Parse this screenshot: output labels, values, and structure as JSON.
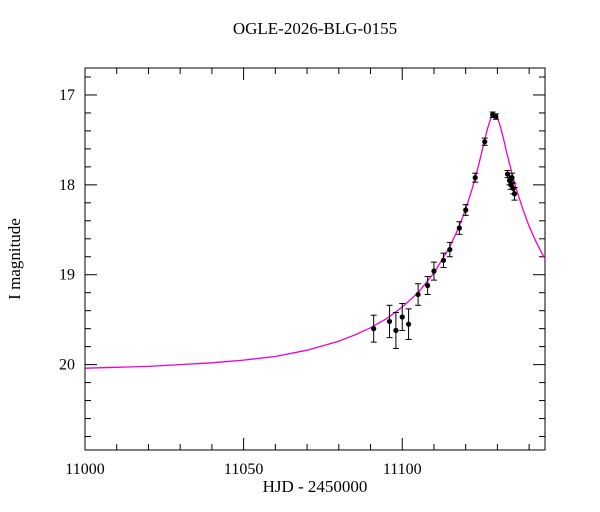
{
  "chart_data": {
    "type": "line",
    "title": "OGLE-2026-BLG-0155",
    "xlabel": "HJD - 2450000",
    "ylabel": "I magnitude",
    "xlim": [
      11000,
      11145
    ],
    "ylim": [
      20.95,
      16.7
    ],
    "y_axis_inverted": true,
    "grid": false,
    "legend_position": "none",
    "x_major_ticks": [
      11000,
      11050,
      11100
    ],
    "x_minor_tick_step": 10,
    "y_major_ticks": [
      17,
      18,
      19,
      20
    ],
    "y_minor_tick_step": 0.2,
    "colors": {
      "model_curve": "#ee00cc",
      "data_points": "#000000",
      "axes": "#000000",
      "background": "#ffffff"
    },
    "series": [
      {
        "name": "microlensing-model-curve",
        "type": "line",
        "color": "#ee00cc",
        "x": [
          11000,
          11010,
          11020,
          11030,
          11040,
          11050,
          11060,
          11070,
          11080,
          11085,
          11090,
          11095,
          11100,
          11105,
          11110,
          11115,
          11118,
          11120,
          11122,
          11124,
          11126,
          11127,
          11128,
          11128.5,
          11129,
          11129.5,
          11130,
          11131,
          11132,
          11133,
          11134,
          11135,
          11136,
          11138,
          11140,
          11142,
          11144,
          11145
        ],
        "y": [
          20.04,
          20.03,
          20.02,
          20.0,
          19.98,
          19.95,
          19.91,
          19.84,
          19.74,
          19.67,
          19.59,
          19.49,
          19.36,
          19.2,
          18.98,
          18.69,
          18.46,
          18.27,
          18.05,
          17.79,
          17.5,
          17.36,
          17.25,
          17.22,
          17.21,
          17.22,
          17.25,
          17.36,
          17.5,
          17.65,
          17.79,
          17.93,
          18.05,
          18.27,
          18.46,
          18.62,
          18.76,
          18.82
        ]
      },
      {
        "name": "ogle-i-band-photometry",
        "type": "scatter",
        "color": "#000000",
        "points": [
          {
            "x": 11091.0,
            "mag": 19.6,
            "err": 0.15
          },
          {
            "x": 11096.0,
            "mag": 19.52,
            "err": 0.18
          },
          {
            "x": 11098.0,
            "mag": 19.62,
            "err": 0.2
          },
          {
            "x": 11100.0,
            "mag": 19.47,
            "err": 0.15
          },
          {
            "x": 11102.0,
            "mag": 19.55,
            "err": 0.17
          },
          {
            "x": 11105.0,
            "mag": 19.22,
            "err": 0.12
          },
          {
            "x": 11108.0,
            "mag": 19.12,
            "err": 0.1
          },
          {
            "x": 11110.0,
            "mag": 18.96,
            "err": 0.1
          },
          {
            "x": 11113.0,
            "mag": 18.84,
            "err": 0.08
          },
          {
            "x": 11115.0,
            "mag": 18.72,
            "err": 0.08
          },
          {
            "x": 11118.0,
            "mag": 18.48,
            "err": 0.07
          },
          {
            "x": 11120.0,
            "mag": 18.28,
            "err": 0.06
          },
          {
            "x": 11123.0,
            "mag": 17.92,
            "err": 0.05
          },
          {
            "x": 11126.0,
            "mag": 17.52,
            "err": 0.04
          },
          {
            "x": 11128.5,
            "mag": 17.22,
            "err": 0.03
          },
          {
            "x": 11129.5,
            "mag": 17.24,
            "err": 0.03
          },
          {
            "x": 11133.2,
            "mag": 17.88,
            "err": 0.04
          },
          {
            "x": 11133.8,
            "mag": 17.95,
            "err": 0.05
          },
          {
            "x": 11134.2,
            "mag": 18.0,
            "err": 0.05
          },
          {
            "x": 11134.6,
            "mag": 17.92,
            "err": 0.05
          },
          {
            "x": 11135.0,
            "mag": 18.04,
            "err": 0.06
          },
          {
            "x": 11135.4,
            "mag": 18.1,
            "err": 0.07
          }
        ]
      }
    ]
  }
}
